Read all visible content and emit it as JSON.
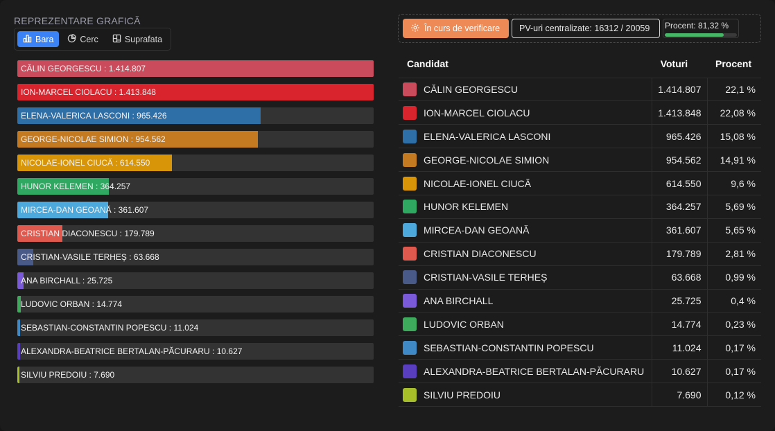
{
  "left_panel": {
    "title": "REPREZENTARE GRAFICĂ",
    "view_tabs": [
      {
        "label": "Bara",
        "icon": "bar-chart-icon",
        "active": true
      },
      {
        "label": "Cerc",
        "icon": "pie-chart-icon",
        "active": false
      },
      {
        "label": "Suprafata",
        "icon": "treemap-icon",
        "active": false
      }
    ]
  },
  "status": {
    "verification_label": "În curs de verificare",
    "pv_label": "PV-uri centralizate: 16312 / 20059",
    "percent_label": "Procent: 81,32 %",
    "percent_value": 81.32,
    "colors": {
      "verification": "#ee8a55",
      "progress": "#45b766"
    }
  },
  "table": {
    "headers": {
      "candidate": "Candidat",
      "votes": "Voturi",
      "percent": "Procent"
    }
  },
  "candidates": [
    {
      "name": "CĂLIN GEORGESCU",
      "votes": "1.414.807",
      "votes_num": 1414807,
      "percent": "22,1 %",
      "color": "#c94b5c",
      "bar_label": "CĂLIN GEORGESCU : 1.414.807"
    },
    {
      "name": "ION-MARCEL CIOLACU",
      "votes": "1.413.848",
      "votes_num": 1413848,
      "percent": "22,08 %",
      "color": "#d9232d",
      "bar_label": "ION-MARCEL CIOLACU : 1.413.848"
    },
    {
      "name": "ELENA-VALERICA LASCONI",
      "votes": "965.426",
      "votes_num": 965426,
      "percent": "15,08 %",
      "color": "#2f6fa8",
      "bar_label": "ELENA-VALERICA LASCONI : 965.426"
    },
    {
      "name": "GEORGE-NICOLAE SIMION",
      "votes": "954.562",
      "votes_num": 954562,
      "percent": "14,91 %",
      "color": "#c47a20",
      "bar_label": "GEORGE-NICOLAE SIMION : 954.562"
    },
    {
      "name": "NICOLAE-IONEL CIUCĂ",
      "votes": "614.550",
      "votes_num": 614550,
      "percent": "9,6 %",
      "color": "#d99508",
      "bar_label": "NICOLAE-IONEL CIUCĂ : 614.550"
    },
    {
      "name": "HUNOR KELEMEN",
      "votes": "364.257",
      "votes_num": 364257,
      "percent": "5,69 %",
      "color": "#2fa862",
      "bar_label": "HUNOR KELEMEN : 364.257"
    },
    {
      "name": "MIRCEA-DAN GEOANĂ",
      "votes": "361.607",
      "votes_num": 361607,
      "percent": "5,65 %",
      "color": "#4da9dc",
      "bar_label": "MIRCEA-DAN GEOANĂ : 361.607"
    },
    {
      "name": "CRISTIAN DIACONESCU",
      "votes": "179.789",
      "votes_num": 179789,
      "percent": "2,81 %",
      "color": "#e0594e",
      "bar_label": "CRISTIAN DIACONESCU : 179.789"
    },
    {
      "name": "CRISTIAN-VASILE TERHEȘ",
      "votes": "63.668",
      "votes_num": 63668,
      "percent": "0,99 %",
      "color": "#4a5a88",
      "bar_label": "CRISTIAN-VASILE TERHEȘ : 63.668"
    },
    {
      "name": "ANA BIRCHALL",
      "votes": "25.725",
      "votes_num": 25725,
      "percent": "0,4 %",
      "color": "#7a5ad8",
      "bar_label": "ANA BIRCHALL : 25.725"
    },
    {
      "name": "LUDOVIC ORBAN",
      "votes": "14.774",
      "votes_num": 14774,
      "percent": "0,23 %",
      "color": "#3daa5c",
      "bar_label": "LUDOVIC ORBAN : 14.774"
    },
    {
      "name": "SEBASTIAN-CONSTANTIN POPESCU",
      "votes": "11.024",
      "votes_num": 11024,
      "percent": "0,17 %",
      "color": "#3f8ac6",
      "bar_label": "SEBASTIAN-CONSTANTIN POPESCU : 11.024"
    },
    {
      "name": "ALEXANDRA-BEATRICE BERTALAN-PĂCURARU",
      "votes": "10.627",
      "votes_num": 10627,
      "percent": "0,17 %",
      "color": "#5a3ec0",
      "bar_label": "ALEXANDRA-BEATRICE BERTALAN-PĂCURARU : 10.627"
    },
    {
      "name": "SILVIU PREDOIU",
      "votes": "7.690",
      "votes_num": 7690,
      "percent": "0,12 %",
      "color": "#a7c02a",
      "bar_label": "SILVIU PREDOIU : 7.690"
    }
  ],
  "chart_data": {
    "type": "bar",
    "title": "",
    "xlabel": "",
    "ylabel": "",
    "orientation": "horizontal",
    "categories": [
      "CĂLIN GEORGESCU",
      "ION-MARCEL CIOLACU",
      "ELENA-VALERICA LASCONI",
      "GEORGE-NICOLAE SIMION",
      "NICOLAE-IONEL CIUCĂ",
      "HUNOR KELEMEN",
      "MIRCEA-DAN GEOANĂ",
      "CRISTIAN DIACONESCU",
      "CRISTIAN-VASILE TERHEȘ",
      "ANA BIRCHALL",
      "LUDOVIC ORBAN",
      "SEBASTIAN-CONSTANTIN POPESCU",
      "ALEXANDRA-BEATRICE BERTALAN-PĂCURARU",
      "SILVIU PREDOIU"
    ],
    "values": [
      1414807,
      1413848,
      965426,
      954562,
      614550,
      364257,
      361607,
      179789,
      63668,
      25725,
      14774,
      11024,
      10627,
      7690
    ],
    "xlim": [
      0,
      1414807
    ]
  }
}
